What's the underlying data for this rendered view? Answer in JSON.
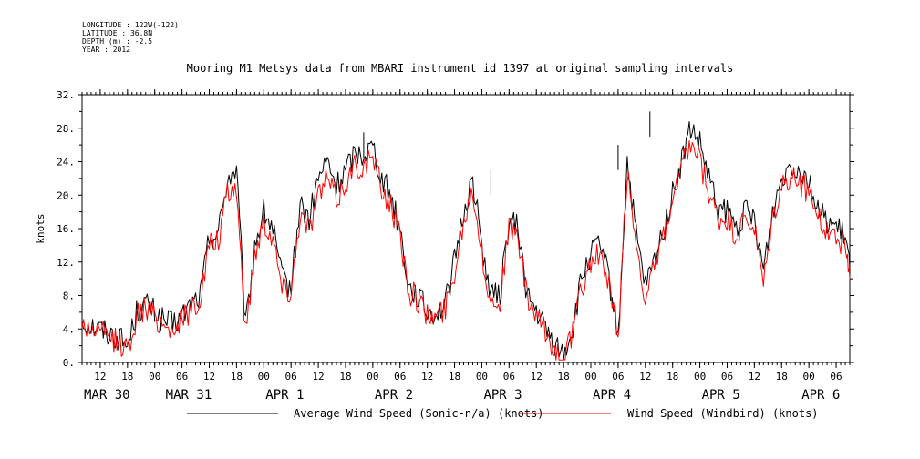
{
  "header": {
    "longitude": "LONGITUDE : 122W(-122)",
    "latitude": "LATITUDE : 36.8N",
    "depth": "DEPTH (m) : -2.5",
    "year": "YEAR : 2012"
  },
  "chart_data": {
    "type": "line",
    "title": "Mooring M1 Metsys data from MBARI instrument id 1397 at original sampling intervals",
    "ylabel": "knots",
    "xlabel": "",
    "ylim": [
      0,
      32
    ],
    "yticks": [
      0,
      4,
      8,
      12,
      16,
      20,
      24,
      28,
      32
    ],
    "yticklabels": [
      "0.",
      "4.",
      "8.",
      "12.",
      "16.",
      "20.",
      "24.",
      "28.",
      "32."
    ],
    "xlim": [
      8,
      177
    ],
    "x_unit": "hours after 2012-03-30 00:00",
    "xticks": [
      12,
      18,
      24,
      30,
      36,
      42,
      48,
      54,
      60,
      66,
      72,
      78,
      84,
      90,
      96,
      102,
      108,
      114,
      120,
      126,
      132,
      138,
      144,
      150,
      156,
      162,
      168,
      174
    ],
    "xticklabels": [
      "12",
      "18",
      "00",
      "06",
      "12",
      "18",
      "00",
      "06",
      "12",
      "18",
      "00",
      "06",
      "12",
      "18",
      "00",
      "06",
      "12",
      "18",
      "00",
      "06",
      "12",
      "18",
      "00",
      "06",
      "12",
      "18",
      "00",
      "06"
    ],
    "day_labels": [
      {
        "x": 8,
        "label": "MAR 30"
      },
      {
        "x": 26,
        "label": "MAR 31"
      },
      {
        "x": 48,
        "label": "APR  1"
      },
      {
        "x": 72,
        "label": "APR  2"
      },
      {
        "x": 96,
        "label": "APR  3"
      },
      {
        "x": 120,
        "label": "APR  4"
      },
      {
        "x": 144,
        "label": "APR  5"
      },
      {
        "x": 166,
        "label": "APR  6"
      }
    ],
    "grid": false,
    "legend_position": "bottom",
    "series": [
      {
        "name": "Average Wind Speed (Sonic-n/a) (knots)",
        "color": "#000000",
        "x": [
          8,
          10,
          12,
          14,
          16,
          18,
          20,
          22,
          24,
          26,
          28,
          30,
          32,
          34,
          36,
          38,
          40,
          42,
          44,
          46,
          48,
          50,
          52,
          54,
          56,
          58,
          60,
          62,
          64,
          66,
          68,
          70,
          72,
          74,
          76,
          78,
          80,
          82,
          84,
          86,
          88,
          90,
          92,
          94,
          96,
          98,
          100,
          102,
          104,
          106,
          108,
          110,
          112,
          114,
          116,
          118,
          120,
          122,
          124,
          126,
          128,
          130,
          132,
          134,
          136,
          138,
          140,
          142,
          144,
          146,
          148,
          150,
          152,
          154,
          156,
          158,
          160,
          162,
          164,
          166,
          168,
          170,
          172,
          174,
          176,
          177
        ],
        "values": [
          5,
          4.5,
          4,
          3.5,
          3,
          2,
          6,
          7,
          6,
          5,
          4.5,
          5.5,
          7,
          8,
          15,
          15.5,
          22,
          23,
          4,
          14,
          18,
          16,
          10,
          9,
          19,
          17,
          22,
          24,
          21,
          23,
          25,
          25,
          26,
          22,
          20,
          16,
          9,
          8,
          6,
          6,
          7,
          12,
          18,
          22,
          14,
          8,
          8,
          17,
          16,
          8,
          6,
          4,
          2,
          1,
          4,
          10,
          13,
          14,
          10,
          3,
          24,
          15,
          9,
          12,
          16,
          20,
          24,
          28,
          26,
          22,
          18,
          18,
          16,
          18,
          17,
          11,
          18,
          22,
          24,
          23,
          22,
          18,
          17,
          16,
          15,
          11
        ],
        "detail": [
          [
            70,
            27.5
          ],
          [
            98,
            23
          ],
          [
            126,
            26
          ],
          [
            133,
            30
          ]
        ]
      },
      {
        "name": "Wind Speed (Windbird) (knots)",
        "color": "#ff0000",
        "x": [
          8,
          10,
          12,
          14,
          16,
          18,
          20,
          22,
          24,
          26,
          28,
          30,
          32,
          34,
          36,
          38,
          40,
          42,
          44,
          46,
          48,
          50,
          52,
          54,
          56,
          58,
          60,
          62,
          64,
          66,
          68,
          70,
          72,
          74,
          76,
          78,
          80,
          82,
          84,
          86,
          88,
          90,
          92,
          94,
          96,
          98,
          100,
          102,
          104,
          106,
          108,
          110,
          112,
          114,
          116,
          118,
          120,
          122,
          124,
          126,
          128,
          130,
          132,
          134,
          136,
          138,
          140,
          142,
          144,
          146,
          148,
          150,
          152,
          154,
          156,
          158,
          160,
          162,
          164,
          166,
          168,
          170,
          172,
          174,
          176,
          177
        ],
        "values": [
          4.5,
          4,
          3.5,
          3,
          2.5,
          1.5,
          5.5,
          6.5,
          5.5,
          4.5,
          4,
          5,
          6.5,
          7.5,
          14,
          14.5,
          20,
          21,
          3.5,
          13,
          17,
          15,
          9,
          8.5,
          18,
          16,
          20,
          22,
          19.5,
          21.5,
          23.5,
          23.5,
          24.5,
          20.5,
          19,
          15,
          8.5,
          7.5,
          5.5,
          5.5,
          6.5,
          11,
          17,
          21,
          13,
          7,
          7.5,
          16,
          15,
          7.5,
          5.5,
          3.5,
          1.5,
          0.5,
          3.5,
          9,
          12,
          13,
          9,
          2.5,
          23,
          14,
          8,
          11,
          15,
          19,
          23,
          26,
          24,
          20,
          17,
          17,
          15,
          17,
          16,
          9,
          17,
          21,
          22,
          21.5,
          20.5,
          17,
          16,
          15,
          14,
          10
        ]
      }
    ]
  }
}
